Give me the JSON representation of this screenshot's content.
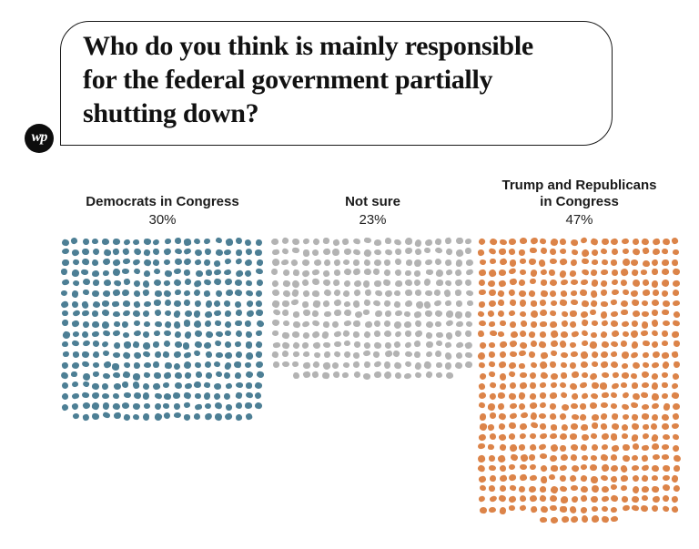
{
  "brand": {
    "name": "The Washington Post",
    "logo_text": "wp",
    "logo_bg_color": "#0d0d0d",
    "logo_text_color": "#ffffff"
  },
  "question": {
    "text": "Who do you think is mainly responsible\nfor the federal government partially\nshutting down?"
  },
  "chart_data": {
    "type": "dot-waffle",
    "title": "Who do you think is mainly responsible for the federal government partially shutting down?",
    "unit": "percent of respondents",
    "legend_position": "none",
    "grid": "off",
    "categories": [
      "Democrats in Congress",
      "Not sure",
      "Trump and Republicans in Congress"
    ],
    "values": [
      30,
      23,
      47
    ],
    "groups": [
      {
        "label": "Democrats in Congress",
        "label_lines": [
          "Democrats in Congress"
        ],
        "value_label": "30%",
        "percent": 30,
        "color": "#4d7f95",
        "dot_count": 358,
        "columns": 20
      },
      {
        "label": "Not sure",
        "label_lines": [
          "Not sure"
        ],
        "value_label": "23%",
        "percent": 23,
        "color": "#b3b3b3",
        "dot_count": 276,
        "columns": 20
      },
      {
        "label": "Trump and Republicans in Congress",
        "label_lines": [
          "Trump and Republicans",
          "in Congress"
        ],
        "value_label": "47%",
        "percent": 47,
        "color": "#dc8449",
        "dot_count": 548,
        "columns": 20
      }
    ]
  }
}
